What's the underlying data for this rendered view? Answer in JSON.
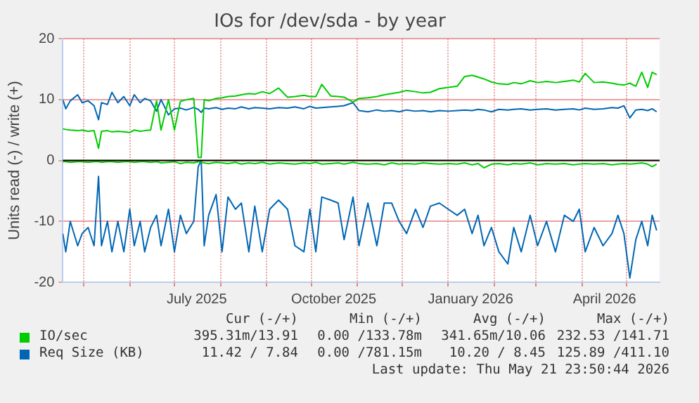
{
  "chart_data": {
    "type": "line",
    "title": "IOs for /dev/sda - by year",
    "ylabel": "Units read (-) / write (+)",
    "x": [
      "2025-04-17",
      "2025-04-19",
      "2025-04-22",
      "2025-04-27",
      "2025-04-30",
      "2025-05-04",
      "2025-05-08",
      "2025-05-11",
      "2025-05-13",
      "2025-05-17",
      "2025-05-20",
      "2025-05-24",
      "2025-05-28",
      "2025-06-01",
      "2025-06-04",
      "2025-06-08",
      "2025-06-11",
      "2025-06-15",
      "2025-06-19",
      "2025-06-22",
      "2025-06-27",
      "2025-07-01",
      "2025-07-05",
      "2025-07-09",
      "2025-07-14",
      "2025-07-17",
      "2025-07-19",
      "2025-07-21",
      "2025-07-24",
      "2025-07-29",
      "2025-08-02",
      "2025-08-06",
      "2025-08-11",
      "2025-08-15",
      "2025-08-20",
      "2025-08-24",
      "2025-08-29",
      "2025-09-03",
      "2025-09-09",
      "2025-09-15",
      "2025-09-20",
      "2025-09-26",
      "2025-09-30",
      "2025-10-04",
      "2025-10-08",
      "2025-10-14",
      "2025-10-19",
      "2025-10-23",
      "2025-10-29",
      "2025-11-02",
      "2025-11-08",
      "2025-11-14",
      "2025-11-19",
      "2025-11-24",
      "2025-11-29",
      "2025-12-04",
      "2025-12-10",
      "2025-12-15",
      "2025-12-20",
      "2025-12-26",
      "2026-01-01",
      "2026-01-07",
      "2026-01-12",
      "2026-01-17",
      "2026-01-21",
      "2026-01-25",
      "2026-01-30",
      "2026-02-04",
      "2026-02-10",
      "2026-02-14",
      "2026-02-19",
      "2026-02-25",
      "2026-03-02",
      "2026-03-08",
      "2026-03-14",
      "2026-03-20",
      "2026-03-26",
      "2026-03-30",
      "2026-04-03",
      "2026-04-09",
      "2026-04-15",
      "2026-04-21",
      "2026-04-25",
      "2026-04-29",
      "2026-05-03",
      "2026-05-07",
      "2026-05-11",
      "2026-05-15",
      "2026-05-18",
      "2026-05-21"
    ],
    "series": [
      {
        "name": "IO/sec",
        "color": "#00cc00",
        "values": [
          5.2,
          5.1,
          5,
          4.9,
          5,
          4.8,
          4.9,
          2,
          4.8,
          4.9,
          4.7,
          4.8,
          4.7,
          4.6,
          5,
          4.8,
          4.9,
          5,
          9.8,
          5,
          10,
          5,
          9.7,
          10,
          10.2,
          0.5,
          0.5,
          10,
          9.8,
          10.2,
          10.3,
          10.5,
          10.6,
          10.8,
          11,
          10.9,
          11.3,
          11,
          11.9,
          10.4,
          10.5,
          10.7,
          10.5,
          10.5,
          12.5,
          10.6,
          10.5,
          10.4,
          9.6,
          10.2,
          10.3,
          10.5,
          10.8,
          11,
          11.2,
          11.5,
          11.3,
          11.1,
          11.2,
          11.8,
          12,
          12.2,
          13.8,
          14,
          13.7,
          13.4,
          12.9,
          12.6,
          12.5,
          12.8,
          12.6,
          13.1,
          12.8,
          13,
          12.8,
          13,
          13.2,
          12.9,
          14.3,
          12.8,
          12.9,
          12.7,
          12.5,
          12.4,
          12.7,
          12.2,
          14.5,
          12,
          14.5,
          14.1
        ]
      },
      {
        "color": "#00cc00",
        "values": [
          -0.2,
          -0.2,
          -0.3,
          -0.2,
          -0.2,
          -0.3,
          -0.2,
          -0.2,
          -0.3,
          -0.2,
          -0.2,
          -0.3,
          -0.2,
          -0.2,
          -0.3,
          -0.2,
          -0.2,
          -0.3,
          -0.2,
          -0.4,
          -0.3,
          -0.2,
          -0.5,
          -0.3,
          -0.4,
          -0.2,
          -0.3,
          -0.4,
          -0.5,
          -0.3,
          -0.4,
          -0.5,
          -0.3,
          -0.6,
          -0.4,
          -0.5,
          -0.3,
          -0.6,
          -0.4,
          -0.5,
          -0.6,
          -0.4,
          -0.5,
          -0.3,
          -0.6,
          -0.5,
          -0.4,
          -0.6,
          -0.3,
          -0.5,
          -0.6,
          -0.5,
          -0.7,
          -0.4,
          -0.6,
          -0.5,
          -0.6,
          -0.4,
          -0.5,
          -0.6,
          -0.5,
          -0.6,
          -0.4,
          -0.7,
          -0.5,
          -1.2,
          -0.6,
          -0.5,
          -0.7,
          -0.5,
          -0.6,
          -0.4,
          -0.7,
          -0.5,
          -0.6,
          -0.5,
          -0.7,
          -0.6,
          -0.5,
          -0.6,
          -0.5,
          -0.7,
          -0.6,
          -0.5,
          -0.6,
          -0.5,
          -0.4,
          -0.6,
          -1,
          -0.6
        ]
      },
      {
        "name": "Req Size (KB)",
        "color": "#0066b3",
        "values": [
          10,
          8.5,
          9.8,
          10.8,
          9.5,
          9.8,
          9,
          6.7,
          9.5,
          9.2,
          11.2,
          9.5,
          10.5,
          9,
          10.8,
          9.5,
          10.2,
          9.8,
          8.1,
          10,
          7.5,
          8.5,
          8.6,
          8.3,
          8.7,
          8.4,
          7.9,
          8.6,
          8.5,
          8.7,
          8.4,
          8.6,
          8.5,
          8.8,
          8.5,
          8.7,
          8.6,
          8.5,
          8.7,
          8.6,
          8.8,
          8.5,
          8.9,
          8.6,
          8.7,
          8.8,
          8.9,
          9,
          9.5,
          8.2,
          8,
          8.3,
          8.1,
          8.2,
          8,
          8.3,
          8.1,
          8.2,
          8,
          8.2,
          8.1,
          8.2,
          8.3,
          8.2,
          8.4,
          8.3,
          8,
          8.4,
          8.3,
          8.4,
          8.5,
          8.3,
          8.4,
          8.5,
          8.3,
          8.4,
          8.5,
          8.3,
          8.6,
          8.4,
          8.5,
          8.7,
          8.6,
          9,
          7,
          8.3,
          8.4,
          8.2,
          8.5,
          8
        ]
      },
      {
        "color": "#0066b3",
        "values": [
          -12,
          -15,
          -10,
          -14,
          -12,
          -11,
          -14,
          -2.6,
          -14,
          -10,
          -15,
          -10,
          -15,
          -8,
          -14,
          -10,
          -15,
          -11,
          -9,
          -14,
          -8,
          -15,
          -9,
          -12,
          -10,
          -1,
          0,
          -14,
          -9,
          -5.6,
          -15,
          -6,
          -8,
          -7,
          -15,
          -7.5,
          -15,
          -8,
          -6.5,
          -8,
          -14,
          -15,
          -8,
          -15,
          -6,
          -6.5,
          -7,
          -13,
          -6,
          -14,
          -7,
          -14,
          -7,
          -7,
          -10,
          -12,
          -8,
          -11,
          -7.5,
          -7,
          -8,
          -9,
          -8,
          -12,
          -9,
          -14,
          -11,
          -15,
          -17,
          -11,
          -15,
          -9,
          -14,
          -10,
          -15,
          -9,
          -10,
          -8,
          -15,
          -11,
          -14,
          -12,
          -9,
          -12,
          -19.3,
          -13,
          -10,
          -14,
          -9,
          -11.5
        ]
      }
    ],
    "xlim": [
      "2025-04-17",
      "2026-05-23"
    ],
    "xticks": [
      {
        "value": "2025-05-01",
        "label": null
      },
      {
        "value": "2025-06-01",
        "label": null
      },
      {
        "value": "2025-07-01",
        "label": null
      },
      {
        "value": "2025-07-16",
        "label": "July 2025"
      },
      {
        "value": "2025-08-01",
        "label": null
      },
      {
        "value": "2025-09-01",
        "label": null
      },
      {
        "value": "2025-10-01",
        "label": null
      },
      {
        "value": "2025-10-16",
        "label": "October 2025"
      },
      {
        "value": "2025-11-01",
        "label": null
      },
      {
        "value": "2025-12-01",
        "label": null
      },
      {
        "value": "2026-01-01",
        "label": null
      },
      {
        "value": "2026-01-16",
        "label": "January 2026"
      },
      {
        "value": "2026-02-01",
        "label": null
      },
      {
        "value": "2026-03-01",
        "label": null
      },
      {
        "value": "2026-04-01",
        "label": null
      },
      {
        "value": "2026-04-16",
        "label": "April 2026"
      },
      {
        "value": "2026-05-01",
        "label": null
      }
    ],
    "ylim": [
      -20,
      20
    ],
    "yticks": [
      -20,
      -10,
      0,
      10,
      20
    ],
    "ref_lines": [
      {
        "axis": "y",
        "value": 0,
        "color": "#000000"
      }
    ],
    "grid": true,
    "legend": "bottom",
    "marker": "none",
    "line_style": "solid",
    "annotations": [
      "Cur (-/+)",
      "Min (-/+)",
      "Avg (-/+)",
      "Max (-/+)",
      "395.31m/13.91",
      "0.00 /133.78m",
      "341.65m/10.06",
      "232.53 /141.71",
      "11.42 / 7.84",
      "0.00 /781.15m",
      "10.20 / 8.45",
      "125.89 /411.10",
      "Last update: Thu May 21 23:50:44 2026"
    ]
  }
}
